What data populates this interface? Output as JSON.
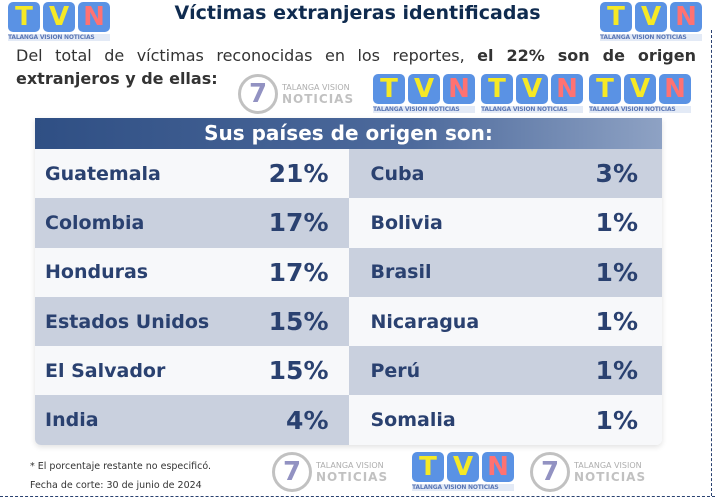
{
  "title": "Víctimas extranjeras identificadas",
  "intro": {
    "normal": "Del total de víctimas reconocidas en los reportes, ",
    "bold": "el 22% son de origen extranjeros y de ellas:"
  },
  "table": {
    "header": "Sus países de origen son:",
    "left": [
      {
        "country": "Guatemala",
        "pct": "21%"
      },
      {
        "country": "Colombia",
        "pct": "17%"
      },
      {
        "country": "Honduras",
        "pct": "17%"
      },
      {
        "country": "Estados Unidos",
        "pct": "15%"
      },
      {
        "country": "El Salvador",
        "pct": "15%"
      },
      {
        "country": "India",
        "pct": "4%"
      }
    ],
    "right": [
      {
        "country": "Cuba",
        "pct": "3%"
      },
      {
        "country": "Bolivia",
        "pct": "1%"
      },
      {
        "country": "Brasil",
        "pct": "1%"
      },
      {
        "country": "Nicaragua",
        "pct": "1%"
      },
      {
        "country": "Perú",
        "pct": "1%"
      },
      {
        "country": "Somalia",
        "pct": "1%"
      }
    ]
  },
  "footnote": "* El porcentaje restante no especificó.",
  "date": "Fecha de corte: 30 de junio de 2024",
  "watermark": {
    "tvn_letters": [
      "T",
      "V",
      "N"
    ],
    "tvn_caption": "TALANGA VISION NOTICIAS",
    "c7_number": "7",
    "c7_line1": "TALANGA VISION",
    "c7_line2": "NOTICIAS"
  }
}
